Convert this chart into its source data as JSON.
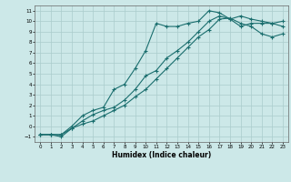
{
  "xlabel": "Humidex (Indice chaleur)",
  "background_color": "#cce8e8",
  "grid_color": "#aacccc",
  "line_color": "#1a6e6e",
  "xlim": [
    -0.5,
    23.5
  ],
  "ylim": [
    -1.5,
    11.5
  ],
  "xticks": [
    0,
    1,
    2,
    3,
    4,
    5,
    6,
    7,
    8,
    9,
    10,
    11,
    12,
    13,
    14,
    15,
    16,
    17,
    18,
    19,
    20,
    21,
    22,
    23
  ],
  "yticks": [
    -1,
    0,
    1,
    2,
    3,
    4,
    5,
    6,
    7,
    8,
    9,
    10,
    11
  ],
  "line1_x": [
    0,
    1,
    2,
    3,
    4,
    5,
    6,
    7,
    8,
    9,
    10,
    11,
    12,
    13,
    14,
    15,
    16,
    17,
    18,
    19,
    20,
    21,
    22,
    23
  ],
  "line1_y": [
    -0.8,
    -0.8,
    -0.8,
    -0.2,
    0.5,
    1.1,
    1.5,
    1.8,
    2.5,
    3.5,
    4.8,
    5.3,
    6.5,
    7.2,
    8.0,
    9.0,
    10.0,
    10.5,
    10.2,
    10.5,
    10.2,
    10.0,
    9.8,
    9.5
  ],
  "line2_x": [
    0,
    1,
    2,
    3,
    4,
    5,
    6,
    7,
    8,
    9,
    10,
    11,
    12,
    13,
    14,
    15,
    16,
    17,
    18,
    19,
    20,
    21,
    22,
    23
  ],
  "line2_y": [
    -0.8,
    -0.8,
    -0.8,
    0.0,
    1.0,
    1.5,
    1.8,
    3.5,
    4.0,
    5.5,
    7.2,
    9.8,
    9.5,
    9.5,
    9.8,
    10.0,
    11.0,
    10.8,
    10.2,
    9.5,
    9.8,
    9.8,
    9.8,
    10.0
  ],
  "line3_x": [
    0,
    1,
    2,
    3,
    4,
    5,
    6,
    7,
    8,
    9,
    10,
    11,
    12,
    13,
    14,
    15,
    16,
    17,
    18,
    19,
    20,
    21,
    22,
    23
  ],
  "line3_y": [
    -0.8,
    -0.8,
    -1.0,
    -0.2,
    0.2,
    0.5,
    1.0,
    1.5,
    2.0,
    2.8,
    3.5,
    4.5,
    5.5,
    6.5,
    7.5,
    8.5,
    9.2,
    10.2,
    10.3,
    9.8,
    9.5,
    8.8,
    8.5,
    8.8
  ]
}
